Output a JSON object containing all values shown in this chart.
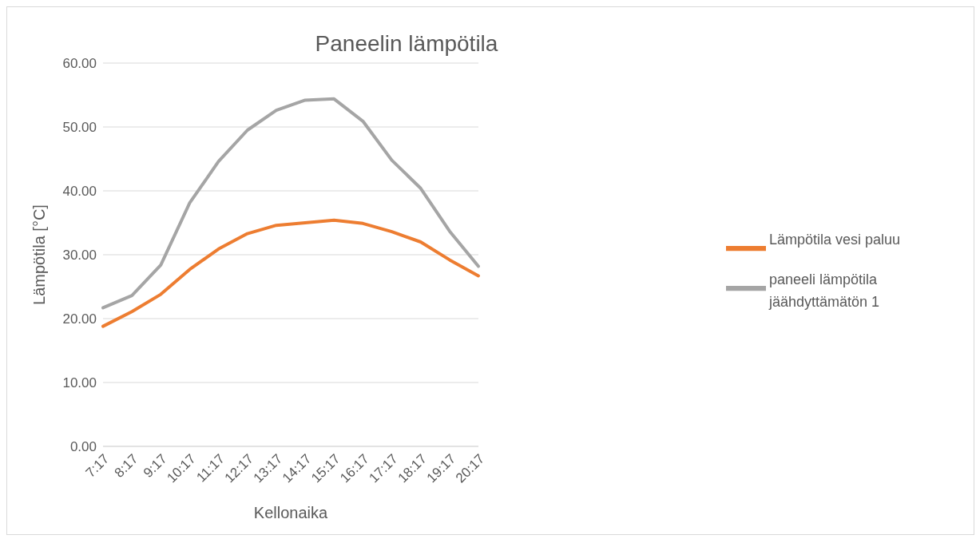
{
  "chart_data": {
    "type": "line",
    "title": "Paneelin lämpötila",
    "xlabel": "Kellonaika",
    "ylabel": "Lämpötila [°C]",
    "categories": [
      "7:17",
      "8:17",
      "9:17",
      "10:17",
      "11:17",
      "12:17",
      "13:17",
      "14:17",
      "15:17",
      "16:17",
      "17:17",
      "18:17",
      "19:17",
      "20:17"
    ],
    "series": [
      {
        "name": "Lämpötila vesi paluu",
        "color": "#ed7d31",
        "values": [
          18.8,
          21.1,
          23.8,
          27.7,
          30.9,
          33.3,
          34.6,
          35.0,
          35.4,
          34.9,
          33.6,
          32.0,
          29.2,
          26.7
        ]
      },
      {
        "name": "paneeli lämpötila jäähdyttämätön 1",
        "color": "#a5a5a5",
        "values": [
          21.7,
          23.6,
          28.4,
          38.1,
          44.6,
          49.5,
          52.6,
          54.2,
          54.4,
          50.9,
          44.8,
          40.4,
          33.7,
          28.2
        ]
      }
    ],
    "ylim": [
      0,
      60
    ],
    "yticks": [
      {
        "value": 0,
        "label": "0.00"
      },
      {
        "value": 10,
        "label": "10.00"
      },
      {
        "value": 20,
        "label": "20.00"
      },
      {
        "value": 30,
        "label": "30.00"
      },
      {
        "value": 40,
        "label": "40.00"
      },
      {
        "value": 50,
        "label": "50.00"
      },
      {
        "value": 60,
        "label": "60.00"
      }
    ],
    "grid": "y",
    "legend": "right",
    "marker": "none",
    "line_style": "solid"
  }
}
